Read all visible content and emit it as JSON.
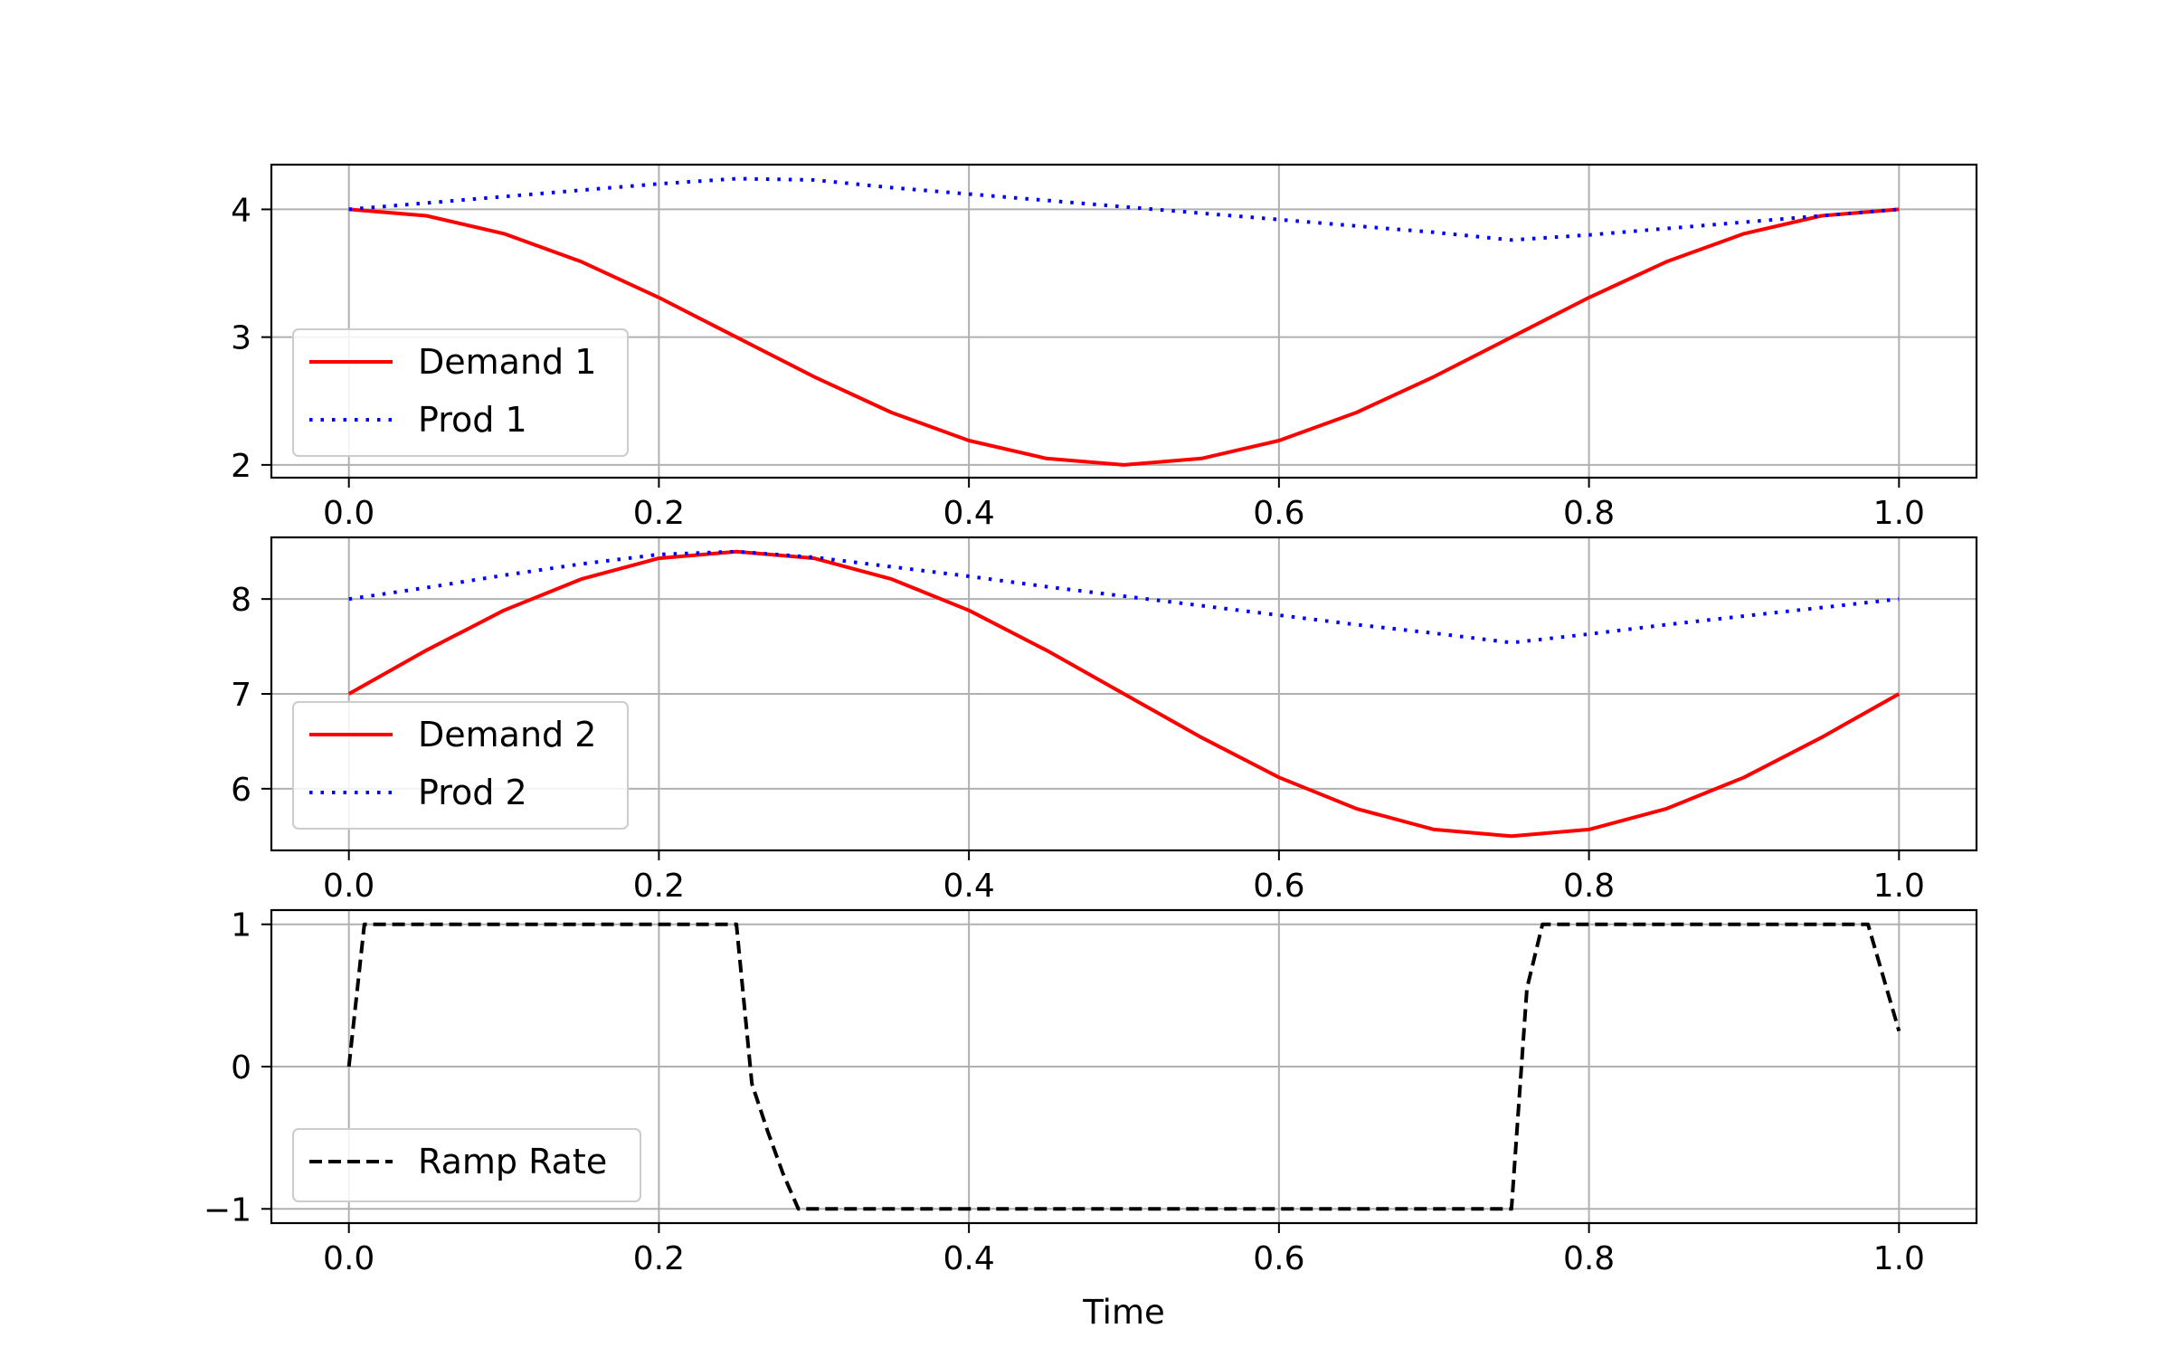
{
  "chart_data": [
    {
      "type": "line",
      "title": "",
      "xlabel": "",
      "ylabel": "",
      "xlim": [
        -0.05,
        1.05
      ],
      "ylim": [
        1.9,
        4.35
      ],
      "xticks": [
        0.0,
        0.2,
        0.4,
        0.6,
        0.8,
        1.0
      ],
      "xtick_labels": [
        "0.0",
        "0.2",
        "0.4",
        "0.6",
        "0.8",
        "1.0"
      ],
      "yticks": [
        2,
        3,
        4
      ],
      "ytick_labels": [
        "2",
        "3",
        "4"
      ],
      "grid": true,
      "legend_position": "lower-left",
      "series": [
        {
          "name": "Demand 1",
          "color": "#ff0000",
          "style": "solid",
          "x": [
            0.0,
            0.05,
            0.1,
            0.15,
            0.2,
            0.25,
            0.3,
            0.35,
            0.4,
            0.45,
            0.5,
            0.55,
            0.6,
            0.65,
            0.7,
            0.75,
            0.8,
            0.85,
            0.9,
            0.95,
            1.0
          ],
          "y": [
            4.0,
            3.95,
            3.81,
            3.59,
            3.31,
            3.0,
            2.69,
            2.41,
            2.19,
            2.05,
            2.0,
            2.05,
            2.19,
            2.41,
            2.69,
            3.0,
            3.31,
            3.59,
            3.81,
            3.95,
            4.0
          ]
        },
        {
          "name": "Prod 1",
          "color": "#0000ff",
          "style": "dotted",
          "x": [
            0.0,
            0.05,
            0.1,
            0.15,
            0.2,
            0.25,
            0.3,
            0.35,
            0.4,
            0.45,
            0.5,
            0.55,
            0.6,
            0.65,
            0.7,
            0.75,
            0.8,
            0.85,
            0.9,
            0.95,
            1.0
          ],
          "y": [
            4.0,
            4.05,
            4.1,
            4.15,
            4.2,
            4.24,
            4.23,
            4.17,
            4.12,
            4.07,
            4.02,
            3.97,
            3.92,
            3.87,
            3.82,
            3.76,
            3.8,
            3.85,
            3.9,
            3.95,
            4.0
          ]
        }
      ]
    },
    {
      "type": "line",
      "title": "",
      "xlabel": "",
      "ylabel": "",
      "xlim": [
        -0.05,
        1.05
      ],
      "ylim": [
        5.35,
        8.65
      ],
      "xticks": [
        0.0,
        0.2,
        0.4,
        0.6,
        0.8,
        1.0
      ],
      "xtick_labels": [
        "0.0",
        "0.2",
        "0.4",
        "0.6",
        "0.8",
        "1.0"
      ],
      "yticks": [
        6,
        7,
        8
      ],
      "ytick_labels": [
        "6",
        "7",
        "8"
      ],
      "grid": true,
      "legend_position": "lower-left",
      "series": [
        {
          "name": "Demand 2",
          "color": "#ff0000",
          "style": "solid",
          "x": [
            0.0,
            0.05,
            0.1,
            0.15,
            0.2,
            0.25,
            0.3,
            0.35,
            0.4,
            0.45,
            0.5,
            0.55,
            0.6,
            0.65,
            0.7,
            0.75,
            0.8,
            0.85,
            0.9,
            0.95,
            1.0
          ],
          "y": [
            7.0,
            7.46,
            7.88,
            8.21,
            8.43,
            8.5,
            8.43,
            8.21,
            7.88,
            7.46,
            7.0,
            6.54,
            6.12,
            5.79,
            5.57,
            5.5,
            5.57,
            5.79,
            6.12,
            6.54,
            7.0
          ]
        },
        {
          "name": "Prod 2",
          "color": "#0000ff",
          "style": "dotted",
          "x": [
            0.0,
            0.05,
            0.1,
            0.15,
            0.2,
            0.25,
            0.3,
            0.35,
            0.4,
            0.45,
            0.5,
            0.55,
            0.6,
            0.65,
            0.7,
            0.75,
            0.8,
            0.85,
            0.9,
            0.95,
            1.0
          ],
          "y": [
            8.0,
            8.12,
            8.25,
            8.37,
            8.47,
            8.5,
            8.44,
            8.34,
            8.24,
            8.13,
            8.03,
            7.93,
            7.83,
            7.73,
            7.64,
            7.54,
            7.63,
            7.73,
            7.82,
            7.91,
            8.0
          ]
        }
      ]
    },
    {
      "type": "line",
      "title": "",
      "xlabel": "Time",
      "ylabel": "",
      "xlim": [
        -0.05,
        1.05
      ],
      "ylim": [
        -1.1,
        1.1
      ],
      "xticks": [
        0.0,
        0.2,
        0.4,
        0.6,
        0.8,
        1.0
      ],
      "xtick_labels": [
        "0.0",
        "0.2",
        "0.4",
        "0.6",
        "0.8",
        "1.0"
      ],
      "yticks": [
        -1,
        0,
        1
      ],
      "ytick_labels": [
        "−1",
        "0",
        "1"
      ],
      "grid": true,
      "legend_position": "lower-left",
      "series": [
        {
          "name": "Ramp Rate",
          "color": "#000000",
          "style": "dashed",
          "x": [
            0.0,
            0.01,
            0.25,
            0.26,
            0.27,
            0.28,
            0.29,
            0.75,
            0.76,
            0.77,
            0.98,
            1.0
          ],
          "y": [
            0.0,
            1.0,
            1.0,
            -0.12,
            -0.45,
            -0.75,
            -1.0,
            -1.0,
            0.55,
            1.0,
            1.0,
            0.25
          ]
        }
      ]
    }
  ]
}
